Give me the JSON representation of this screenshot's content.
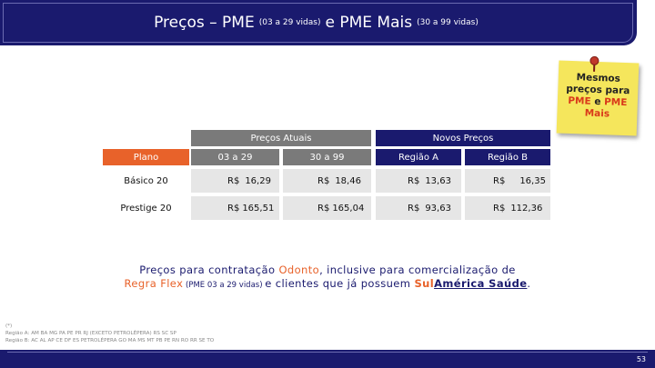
{
  "title": {
    "part1": "Preços – PME",
    "part2": "(03 a 29 vidas)",
    "part3": "e PME Mais",
    "part4": "(30 a 99 vidas)"
  },
  "note": {
    "line1": "Mesmos",
    "line2": "preços para",
    "line3_a": "PME",
    "line3_b": "e",
    "line3_c": "PME",
    "line4": "Mais"
  },
  "table": {
    "group_current": "Preços Atuais",
    "group_new": "Novos Preços",
    "col_plan": "Plano",
    "col_03_29": "03 a 29",
    "col_30_99": "30 a 99",
    "col_regiao_a": "Região A",
    "col_regiao_b": "Região B",
    "rows": [
      {
        "plan": "Básico 20",
        "c1_cur": "R$",
        "c1_val": "16,29",
        "c2_cur": "R$",
        "c2_val": "18,46",
        "c3_cur": "R$",
        "c3_val": "13,63",
        "c4_cur": "R$",
        "c4_val": "16,35"
      },
      {
        "plan": "Prestige 20",
        "c1_cur": "R$",
        "c1_val": "165,51",
        "c2_cur": "R$",
        "c2_val": "165,04",
        "c3_cur": "R$",
        "c3_val": "93,63",
        "c4_cur": "R$",
        "c4_val": "112,36"
      }
    ]
  },
  "paragraph": {
    "t1": "Preços para contratação ",
    "t2": "Odonto",
    "t3": ", inclusive para comercialização de",
    "t4": "Regra Flex",
    "t5": " (PME 03 a 29 vidas) ",
    "t6": "e clientes que já possuem ",
    "t7": "Sul",
    "t8": "América Saúde",
    "t9": "."
  },
  "footnote": {
    "mark": "(*)",
    "line1": "Região A: AM BA MG PA PE PR RJ (EXCETO PETROLÉPERA) RS SC SP",
    "line2": "Região B: AC AL AP CE DF ES PETROLÉPERA GO MA MS MT PB PE RN RO RR SE TO"
  },
  "page_number": "53",
  "colors": {
    "navy": "#1a1a6e",
    "orange": "#e8622a",
    "gray_header": "#7a7a7a",
    "row_gray": "#e6e6e6",
    "note_yellow": "#f5e65c"
  }
}
